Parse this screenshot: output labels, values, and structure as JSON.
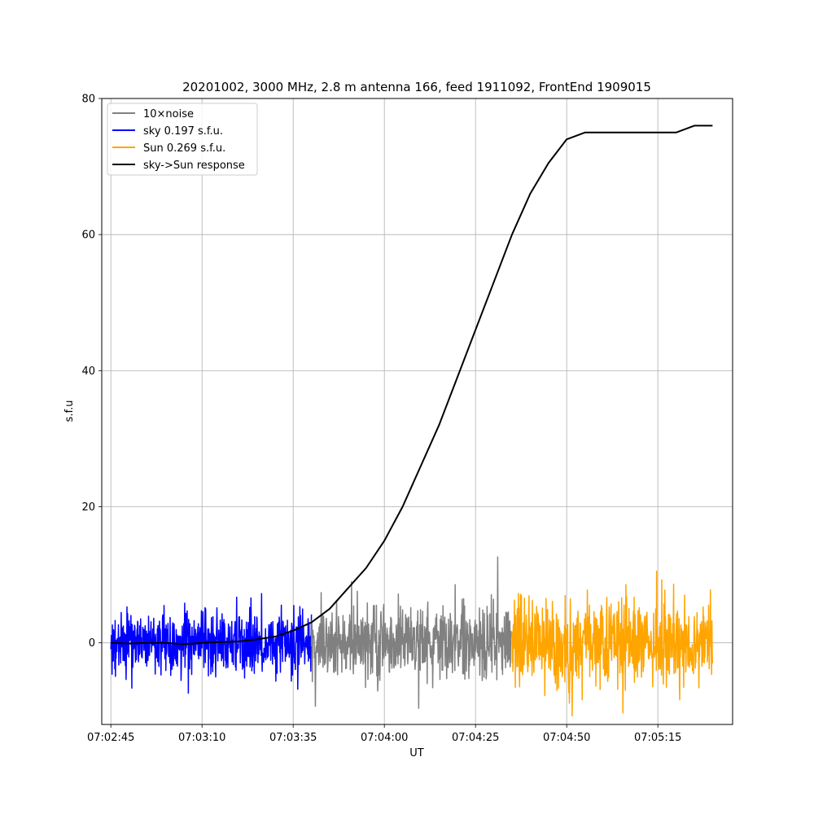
{
  "chart_data": {
    "type": "line",
    "title": "20201002, 3000 MHz, 2.8 m antenna 166, feed 1911092, FrontEnd 1909015",
    "xlabel": "UT",
    "ylabel": "s.f.u",
    "x_unit": "seconds",
    "xlim": [
      -2.5,
      170.5
    ],
    "ylim": [
      -12,
      80
    ],
    "x_ticks": [
      {
        "value": 0,
        "label": "07:02:45"
      },
      {
        "value": 25,
        "label": "07:03:10"
      },
      {
        "value": 50,
        "label": "07:03:35"
      },
      {
        "value": 75,
        "label": "07:04:00"
      },
      {
        "value": 100,
        "label": "07:04:25"
      },
      {
        "value": 125,
        "label": "07:04:50"
      },
      {
        "value": 150,
        "label": "07:05:15"
      }
    ],
    "y_ticks": [
      {
        "value": 0,
        "label": "0"
      },
      {
        "value": 20,
        "label": "20"
      },
      {
        "value": 40,
        "label": "40"
      },
      {
        "value": 60,
        "label": "60"
      },
      {
        "value": 80,
        "label": "80"
      }
    ],
    "grid": true,
    "legend_position": "top-left",
    "series": [
      {
        "name": "10×noise",
        "color": "#808080",
        "style": "noise",
        "x_range": [
          55,
          110
        ],
        "amplitude": 4.5
      },
      {
        "name": "sky 0.197 s.f.u.",
        "color": "#0000ff",
        "style": "noise",
        "x_range": [
          0,
          55
        ],
        "amplitude": 4.0
      },
      {
        "name": "Sun 0.269 s.f.u.",
        "color": "#ffa500",
        "style": "noise",
        "x_range": [
          110,
          165
        ],
        "amplitude": 5.5
      },
      {
        "name": "sky->Sun response",
        "color": "#000000",
        "style": "line",
        "x": [
          0,
          5,
          10,
          15,
          20,
          25,
          30,
          35,
          40,
          45,
          50,
          55,
          60,
          65,
          70,
          75,
          80,
          85,
          90,
          95,
          100,
          105,
          110,
          115,
          120,
          125,
          130,
          135,
          140,
          145,
          150,
          155,
          160,
          165
        ],
        "y": [
          0,
          -0.1,
          0,
          0,
          -0.2,
          0,
          0.1,
          0.2,
          0.5,
          0.9,
          1.8,
          3,
          5,
          8,
          11,
          15,
          20,
          26,
          32,
          39,
          46,
          53,
          60,
          66,
          70.5,
          74,
          75,
          75,
          75,
          75,
          75,
          75,
          76,
          76
        ]
      }
    ]
  }
}
